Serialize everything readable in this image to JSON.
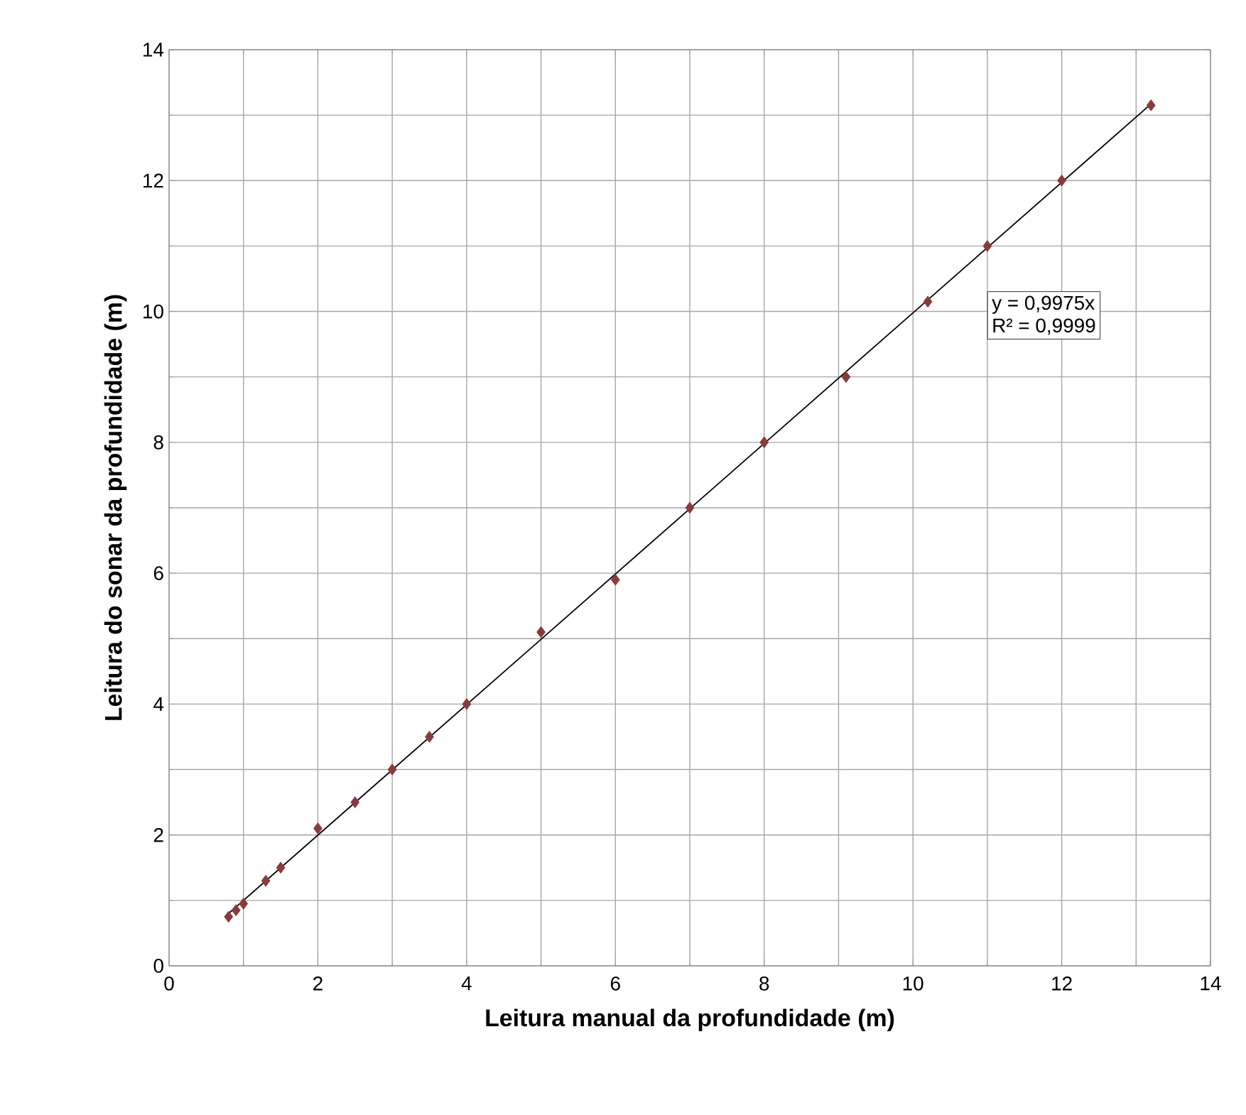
{
  "chart_data": {
    "type": "scatter",
    "xlabel": "Leitura manual da profundidade (m)",
    "ylabel": "Leitura do sonar da profundidade (m)",
    "xlim": [
      0,
      14
    ],
    "ylim": [
      0,
      14
    ],
    "xticks": [
      0,
      2,
      4,
      6,
      8,
      10,
      12,
      14
    ],
    "yticks": [
      0,
      2,
      4,
      6,
      8,
      10,
      12,
      14
    ],
    "grid": true,
    "marker": "diamond",
    "series": [
      {
        "type": "scatter",
        "color": "#8b3a3a",
        "x": [
          0.8,
          0.9,
          1.0,
          1.3,
          1.5,
          2.0,
          2.5,
          3.0,
          3.5,
          4.0,
          5.0,
          6.0,
          7.0,
          8.0,
          9.1,
          10.2,
          11.0,
          12.0,
          13.2
        ],
        "values": [
          0.75,
          0.85,
          0.95,
          1.3,
          1.5,
          2.1,
          2.5,
          3.0,
          3.5,
          4.0,
          5.1,
          5.9,
          7.0,
          8.0,
          9.0,
          10.15,
          11.0,
          12.0,
          13.15
        ]
      },
      {
        "type": "line",
        "color": "#000000",
        "marker": "none",
        "line_style": "solid",
        "x": [
          0.8,
          13.2
        ],
        "values": [
          0.8,
          13.17
        ]
      }
    ],
    "annotations": [
      "y = 0,9975x",
      "R² = 0,9999"
    ]
  }
}
